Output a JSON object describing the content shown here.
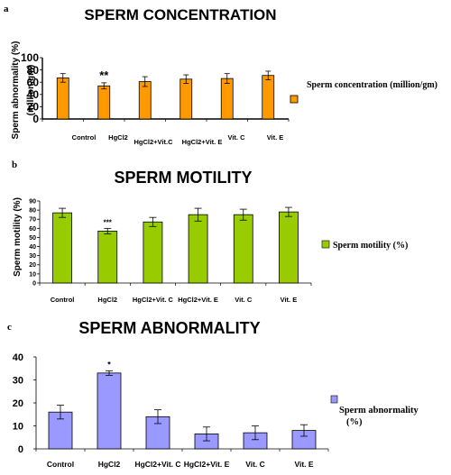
{
  "chart_data": [
    {
      "type": "bar",
      "panel_label": "a",
      "title": "SPERM CONCENTRATION",
      "ylabel": "Sperm abnormality (%)",
      "ylabel2": "(million.gm)",
      "categories": [
        "Control",
        "HgCl2",
        "HgCl2+Vit.C",
        "HgCl2+Vit. E",
        "Vit. C",
        "Vit. E"
      ],
      "series": [
        {
          "name": "Sperm concentration (million/gm)",
          "values": [
            67,
            54,
            61,
            65,
            66,
            71
          ],
          "errors": [
            7,
            5,
            8,
            7,
            8,
            7
          ]
        }
      ],
      "significance": [
        "",
        "**",
        "",
        "",
        "",
        ""
      ],
      "ylim": [
        0,
        100
      ],
      "yticks": [
        0,
        20,
        40,
        60,
        80,
        100
      ],
      "ytick_labels": [
        "0",
        "20",
        "40",
        "60",
        "80",
        "100"
      ],
      "color": "#FF9900",
      "grid": false,
      "legend_position": "right"
    },
    {
      "type": "bar",
      "panel_label": "b",
      "title": "SPERM MOTILITY",
      "ylabel": "Sperm motility (%)",
      "categories": [
        "Control",
        "HgCl2",
        "HgCl2+Vit. C",
        "HgCl2+Vit. E",
        "Vit. C",
        "Vit. E"
      ],
      "series": [
        {
          "name": "Sperm motility (%)",
          "values": [
            77,
            57,
            67,
            75,
            75,
            78
          ],
          "errors": [
            5,
            3,
            5,
            7,
            6,
            5
          ]
        }
      ],
      "significance": [
        "",
        "***",
        "",
        "",
        "",
        ""
      ],
      "ylim": [
        0,
        90
      ],
      "yticks": [
        0,
        10,
        20,
        30,
        40,
        50,
        60,
        70,
        80,
        90
      ],
      "ytick_labels": [
        "0",
        "10",
        "20",
        "30",
        "40",
        "50",
        "60",
        "70",
        "80",
        "90"
      ],
      "color": "#99CC00",
      "grid": false,
      "legend_position": "right"
    },
    {
      "type": "bar",
      "panel_label": "c",
      "title": "SPERM ABNORMALITY",
      "ylabel": "",
      "categories": [
        "Control",
        "HgCl2",
        "HgCl2+Vit. C",
        "HgCl2+Vit. E",
        "Vit. C",
        "Vit. E"
      ],
      "series": [
        {
          "name": "Sperm abnormality (%)",
          "values": [
            16,
            33,
            14,
            6.5,
            7,
            8
          ],
          "errors": [
            3,
            1,
            3,
            3,
            3,
            2.5
          ]
        }
      ],
      "significance": [
        "",
        "*",
        "",
        "",
        "",
        ""
      ],
      "ylim": [
        0,
        40
      ],
      "yticks": [
        0,
        10,
        20,
        30,
        40
      ],
      "ytick_labels": [
        "0",
        "10",
        "20",
        "30",
        "40"
      ],
      "color": "#9999FF",
      "grid": false,
      "legend_position": "right"
    }
  ]
}
